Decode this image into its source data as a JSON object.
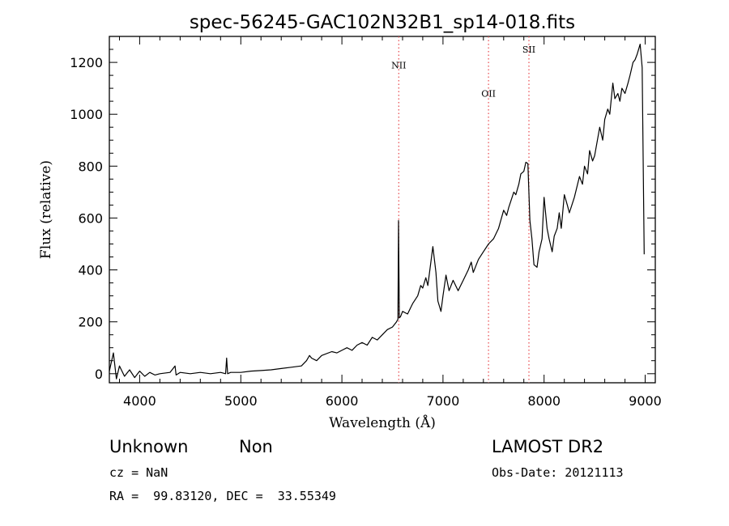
{
  "chart_data": {
    "type": "line",
    "title": "spec-56245-GAC102N32B1_sp14-018.fits",
    "xlabel": "Wavelength (Å)",
    "ylabel": "Flux (relative)",
    "xlim": [
      3700,
      9100
    ],
    "ylim": [
      -35,
      1300
    ],
    "xticks": [
      4000,
      5000,
      6000,
      7000,
      8000,
      9000
    ],
    "yticks": [
      0,
      200,
      400,
      600,
      800,
      1000,
      1200
    ],
    "xtick_labels": [
      "4000",
      "5000",
      "6000",
      "7000",
      "8000",
      "9000"
    ],
    "ytick_labels": [
      "0",
      "200",
      "400",
      "600",
      "800",
      "1000",
      "1200"
    ],
    "line_color": "#000000",
    "marker_color": "#e8464b",
    "lines": [
      {
        "name": "NII",
        "wavelength": 6563,
        "label_flux": 1190
      },
      {
        "name": "OII",
        "wavelength": 7450,
        "label_flux": 1080
      },
      {
        "name": "SII",
        "wavelength": 7850,
        "label_flux": 1250
      }
    ],
    "series": [
      {
        "name": "flux",
        "points": [
          [
            3700,
            10
          ],
          [
            3740,
            80
          ],
          [
            3770,
            -20
          ],
          [
            3800,
            30
          ],
          [
            3850,
            -10
          ],
          [
            3900,
            15
          ],
          [
            3950,
            -15
          ],
          [
            4000,
            10
          ],
          [
            4050,
            -10
          ],
          [
            4100,
            5
          ],
          [
            4150,
            -5
          ],
          [
            4200,
            0
          ],
          [
            4300,
            5
          ],
          [
            4350,
            30
          ],
          [
            4360,
            -5
          ],
          [
            4400,
            5
          ],
          [
            4500,
            0
          ],
          [
            4600,
            5
          ],
          [
            4700,
            0
          ],
          [
            4800,
            5
          ],
          [
            4850,
            0
          ],
          [
            4860,
            60
          ],
          [
            4870,
            0
          ],
          [
            4900,
            5
          ],
          [
            5000,
            5
          ],
          [
            5100,
            10
          ],
          [
            5200,
            12
          ],
          [
            5300,
            15
          ],
          [
            5400,
            20
          ],
          [
            5500,
            25
          ],
          [
            5600,
            30
          ],
          [
            5650,
            50
          ],
          [
            5680,
            70
          ],
          [
            5700,
            60
          ],
          [
            5750,
            50
          ],
          [
            5800,
            70
          ],
          [
            5900,
            85
          ],
          [
            5950,
            80
          ],
          [
            6000,
            90
          ],
          [
            6050,
            100
          ],
          [
            6100,
            90
          ],
          [
            6150,
            110
          ],
          [
            6200,
            120
          ],
          [
            6250,
            110
          ],
          [
            6300,
            140
          ],
          [
            6350,
            130
          ],
          [
            6400,
            150
          ],
          [
            6450,
            170
          ],
          [
            6500,
            180
          ],
          [
            6540,
            200
          ],
          [
            6555,
            210
          ],
          [
            6560,
            590
          ],
          [
            6568,
            215
          ],
          [
            6580,
            220
          ],
          [
            6600,
            240
          ],
          [
            6650,
            230
          ],
          [
            6700,
            270
          ],
          [
            6750,
            300
          ],
          [
            6780,
            340
          ],
          [
            6800,
            330
          ],
          [
            6830,
            370
          ],
          [
            6850,
            340
          ],
          [
            6870,
            400
          ],
          [
            6900,
            490
          ],
          [
            6930,
            390
          ],
          [
            6950,
            280
          ],
          [
            6980,
            240
          ],
          [
            7000,
            300
          ],
          [
            7030,
            380
          ],
          [
            7060,
            320
          ],
          [
            7100,
            360
          ],
          [
            7150,
            320
          ],
          [
            7200,
            360
          ],
          [
            7250,
            400
          ],
          [
            7280,
            430
          ],
          [
            7300,
            390
          ],
          [
            7350,
            440
          ],
          [
            7400,
            470
          ],
          [
            7450,
            500
          ],
          [
            7500,
            520
          ],
          [
            7550,
            560
          ],
          [
            7600,
            630
          ],
          [
            7630,
            610
          ],
          [
            7650,
            640
          ],
          [
            7700,
            700
          ],
          [
            7720,
            690
          ],
          [
            7750,
            730
          ],
          [
            7770,
            770
          ],
          [
            7800,
            780
          ],
          [
            7820,
            815
          ],
          [
            7840,
            810
          ],
          [
            7860,
            590
          ],
          [
            7880,
            520
          ],
          [
            7900,
            420
          ],
          [
            7930,
            410
          ],
          [
            7950,
            470
          ],
          [
            7980,
            520
          ],
          [
            8000,
            680
          ],
          [
            8030,
            560
          ],
          [
            8050,
            520
          ],
          [
            8080,
            470
          ],
          [
            8100,
            530
          ],
          [
            8130,
            560
          ],
          [
            8150,
            620
          ],
          [
            8170,
            560
          ],
          [
            8200,
            690
          ],
          [
            8230,
            650
          ],
          [
            8250,
            620
          ],
          [
            8300,
            680
          ],
          [
            8350,
            760
          ],
          [
            8380,
            730
          ],
          [
            8400,
            800
          ],
          [
            8430,
            770
          ],
          [
            8450,
            860
          ],
          [
            8480,
            820
          ],
          [
            8500,
            840
          ],
          [
            8550,
            950
          ],
          [
            8580,
            900
          ],
          [
            8600,
            980
          ],
          [
            8630,
            1020
          ],
          [
            8650,
            1000
          ],
          [
            8680,
            1120
          ],
          [
            8700,
            1060
          ],
          [
            8730,
            1080
          ],
          [
            8750,
            1050
          ],
          [
            8770,
            1100
          ],
          [
            8800,
            1080
          ],
          [
            8830,
            1120
          ],
          [
            8850,
            1150
          ],
          [
            8880,
            1200
          ],
          [
            8900,
            1210
          ],
          [
            8920,
            1230
          ],
          [
            8950,
            1270
          ],
          [
            8970,
            1180
          ],
          [
            8990,
            460
          ]
        ]
      }
    ],
    "info": {
      "class_label": "Unknown",
      "subclass_label": "Non",
      "survey": "LAMOST DR2",
      "cz": "cz = NaN",
      "obs_date": "Obs-Date: 20121113",
      "coords": "RA =  99.83120, DEC =  33.55349"
    }
  }
}
